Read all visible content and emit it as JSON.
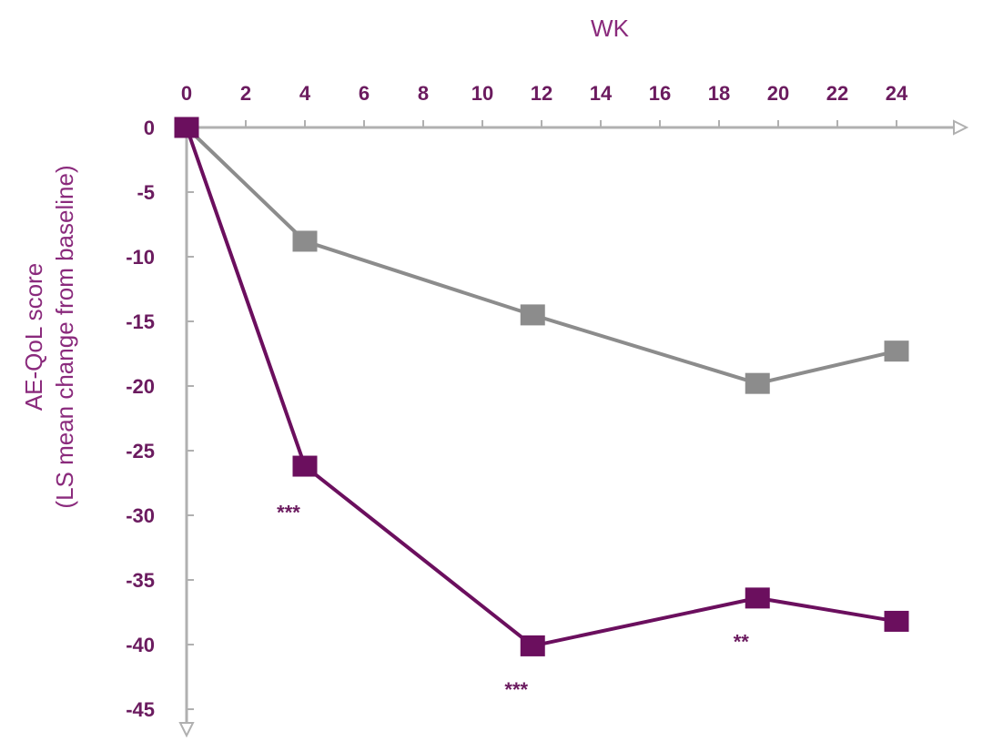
{
  "chart_data": {
    "type": "line",
    "xlabel": "WK",
    "ylabel_line1": "AE-QoL score",
    "ylabel_line2": "(LS mean change from baseline)",
    "x_ticks": [
      0,
      2,
      4,
      6,
      8,
      10,
      12,
      14,
      16,
      18,
      20,
      22,
      24
    ],
    "y_ticks": [
      0,
      -5,
      -10,
      -15,
      -20,
      -25,
      -30,
      -35,
      -40,
      -45
    ],
    "xlim": [
      0,
      26
    ],
    "ylim": [
      -46,
      0
    ],
    "x_axis_position": "top",
    "grid": false,
    "series": [
      {
        "color": "#8c8c8c",
        "x": [
          0,
          4,
          11.7,
          19.3,
          24
        ],
        "y": [
          0,
          -8.8,
          -14.5,
          -19.8,
          -17.3
        ]
      },
      {
        "color": "#6b0f5e",
        "x": [
          0,
          4,
          11.7,
          19.3,
          24
        ],
        "y": [
          0,
          -26.2,
          -40.1,
          -36.4,
          -38.2
        ]
      }
    ],
    "annotations": [
      {
        "text": "***",
        "x": 4,
        "y": -30.3
      },
      {
        "text": "***",
        "x": 11.7,
        "y": -44.0
      },
      {
        "text": "**",
        "x": 19.3,
        "y": -40.3
      }
    ]
  },
  "colors": {
    "axis": "#b0b0b0",
    "label": "#6b1b5f",
    "title": "#8a2a7c"
  }
}
